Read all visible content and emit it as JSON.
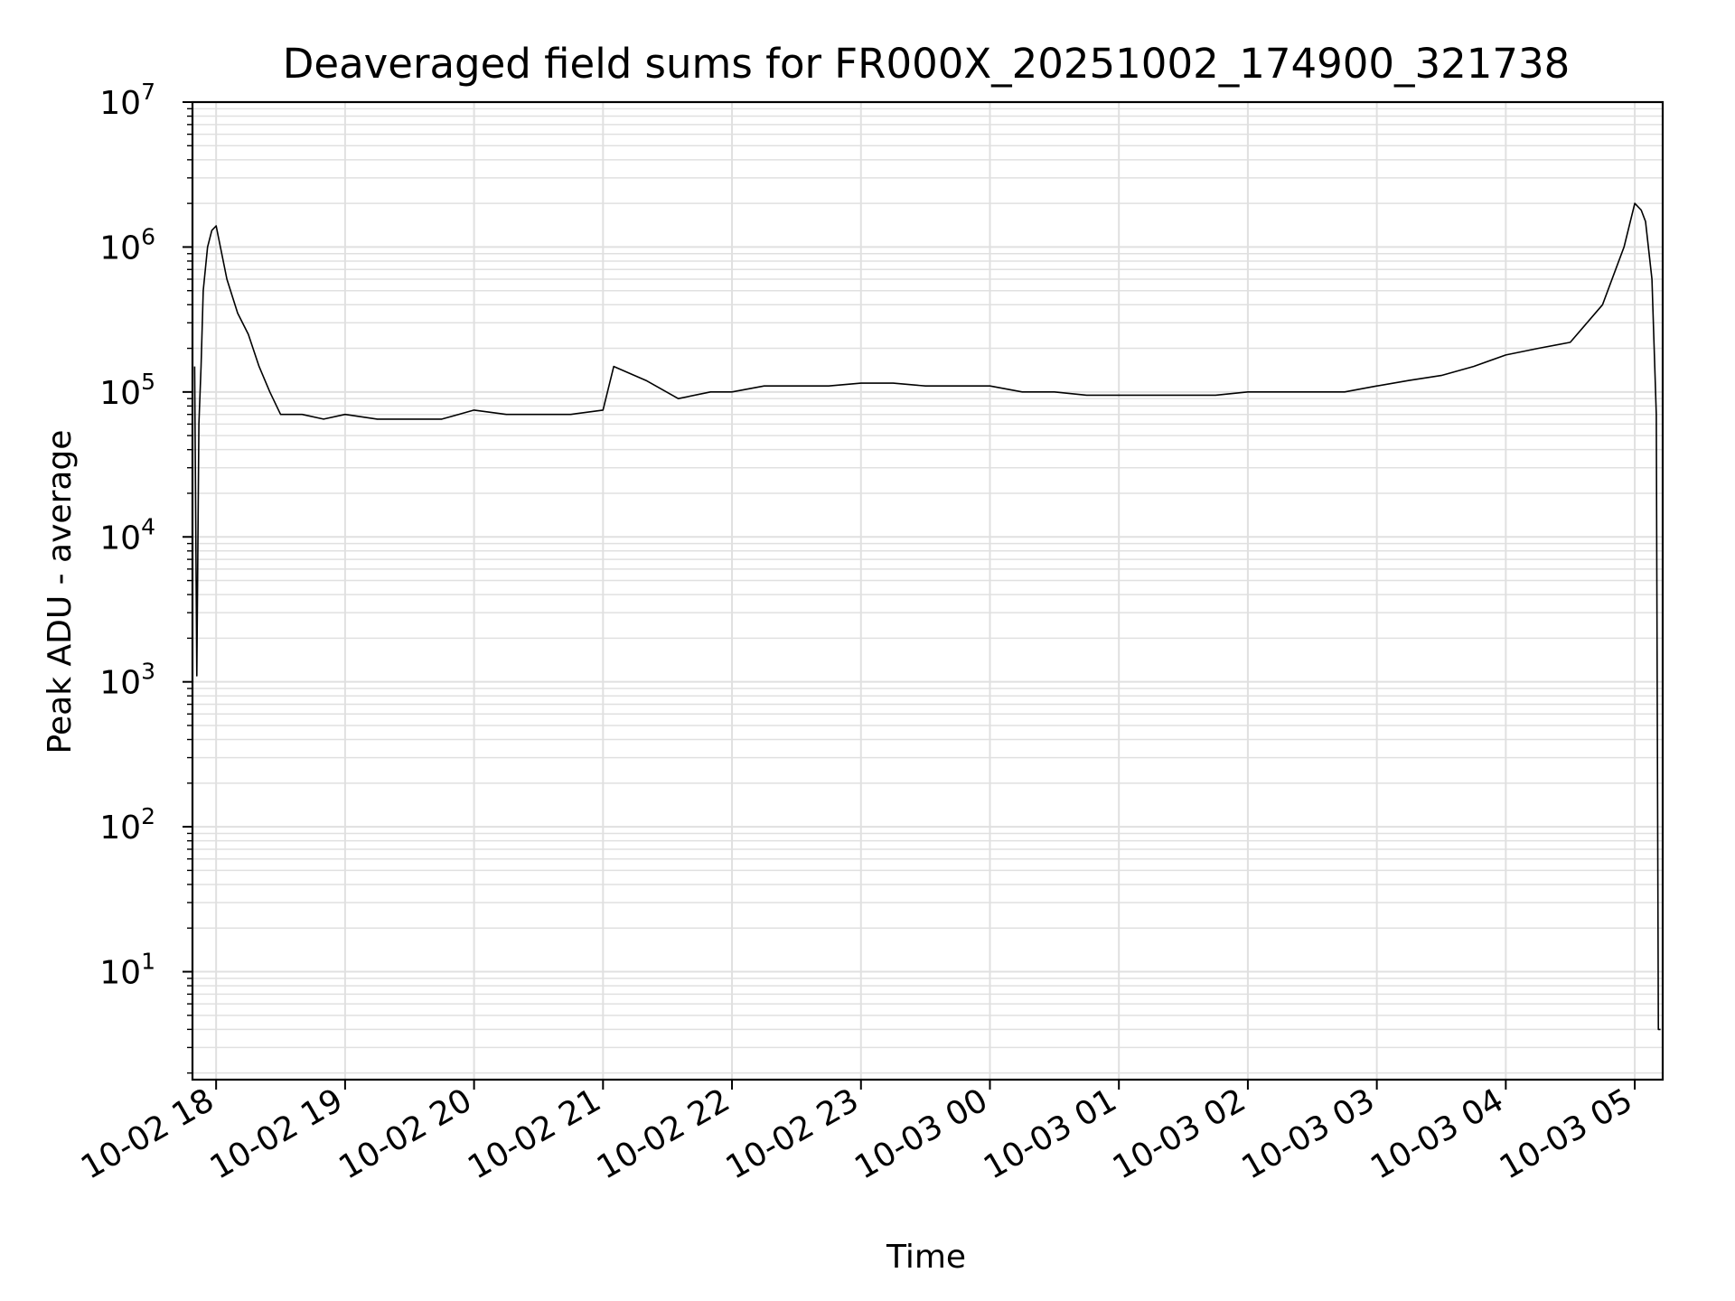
{
  "chart_data": {
    "type": "line",
    "title": "Deaveraged field sums for FR000X_20251002_174900_321738",
    "xlabel": "Time",
    "ylabel": "Peak ADU - average",
    "yscale": "log",
    "ylim": [
      1.8,
      10000000
    ],
    "xlim": [
      "2025-10-02 17:49",
      "2025-10-03 05:13"
    ],
    "grid": true,
    "line_color": "#000000",
    "grid_color": "#e0e0e0",
    "x_ticks": [
      {
        "label": "10-02 18",
        "value": "2025-10-02 18:00"
      },
      {
        "label": "10-02 19",
        "value": "2025-10-02 19:00"
      },
      {
        "label": "10-02 20",
        "value": "2025-10-02 20:00"
      },
      {
        "label": "10-02 21",
        "value": "2025-10-02 21:00"
      },
      {
        "label": "10-02 22",
        "value": "2025-10-02 22:00"
      },
      {
        "label": "10-02 23",
        "value": "2025-10-02 23:00"
      },
      {
        "label": "10-03 00",
        "value": "2025-10-03 00:00"
      },
      {
        "label": "10-03 01",
        "value": "2025-10-03 01:00"
      },
      {
        "label": "10-03 02",
        "value": "2025-10-03 02:00"
      },
      {
        "label": "10-03 03",
        "value": "2025-10-03 03:00"
      },
      {
        "label": "10-03 04",
        "value": "2025-10-03 04:00"
      },
      {
        "label": "10-03 05",
        "value": "2025-10-03 05:00"
      }
    ],
    "y_ticks": [
      {
        "base": "10",
        "exp": "1",
        "value": 10
      },
      {
        "base": "10",
        "exp": "2",
        "value": 100
      },
      {
        "base": "10",
        "exp": "3",
        "value": 1000
      },
      {
        "base": "10",
        "exp": "4",
        "value": 10000
      },
      {
        "base": "10",
        "exp": "5",
        "value": 100000
      },
      {
        "base": "10",
        "exp": "6",
        "value": 1000000
      },
      {
        "base": "10",
        "exp": "7",
        "value": 10000000
      }
    ],
    "series": [
      {
        "x": [
          "2025-10-02 17:50",
          "2025-10-02 17:51",
          "2025-10-02 17:52",
          "2025-10-02 17:53",
          "2025-10-02 17:54",
          "2025-10-02 17:56",
          "2025-10-02 17:58",
          "2025-10-02 18:00",
          "2025-10-02 18:02",
          "2025-10-02 18:05",
          "2025-10-02 18:10",
          "2025-10-02 18:15",
          "2025-10-02 18:20",
          "2025-10-02 18:25",
          "2025-10-02 18:30",
          "2025-10-02 18:40",
          "2025-10-02 18:50",
          "2025-10-02 19:00",
          "2025-10-02 19:15",
          "2025-10-02 19:30",
          "2025-10-02 19:45",
          "2025-10-02 20:00",
          "2025-10-02 20:15",
          "2025-10-02 20:30",
          "2025-10-02 20:45",
          "2025-10-02 21:00",
          "2025-10-02 21:05",
          "2025-10-02 21:20",
          "2025-10-02 21:35",
          "2025-10-02 21:50",
          "2025-10-02 22:00",
          "2025-10-02 22:15",
          "2025-10-02 22:30",
          "2025-10-02 22:45",
          "2025-10-02 23:00",
          "2025-10-02 23:15",
          "2025-10-02 23:30",
          "2025-10-02 23:45",
          "2025-10-03 00:00",
          "2025-10-03 00:15",
          "2025-10-03 00:30",
          "2025-10-03 00:45",
          "2025-10-03 01:00",
          "2025-10-03 01:15",
          "2025-10-03 01:30",
          "2025-10-03 01:45",
          "2025-10-03 02:00",
          "2025-10-03 02:15",
          "2025-10-03 02:30",
          "2025-10-03 02:45",
          "2025-10-03 03:00",
          "2025-10-03 03:15",
          "2025-10-03 03:30",
          "2025-10-03 03:45",
          "2025-10-03 04:00",
          "2025-10-03 04:15",
          "2025-10-03 04:30",
          "2025-10-03 04:45",
          "2025-10-03 04:55",
          "2025-10-03 05:00",
          "2025-10-03 05:03",
          "2025-10-03 05:05",
          "2025-10-03 05:08",
          "2025-10-03 05:10",
          "2025-10-03 05:11",
          "2025-10-03 05:12"
        ],
        "y": [
          150000,
          1100,
          60000,
          150000,
          500000,
          1000000,
          1300000,
          1400000,
          1000000,
          600000,
          350000,
          250000,
          150000,
          100000,
          70000,
          70000,
          65000,
          70000,
          65000,
          65000,
          65000,
          75000,
          70000,
          70000,
          70000,
          75000,
          150000,
          120000,
          90000,
          100000,
          100000,
          110000,
          110000,
          110000,
          115000,
          115000,
          110000,
          110000,
          110000,
          100000,
          100000,
          95000,
          95000,
          95000,
          95000,
          95000,
          100000,
          100000,
          100000,
          100000,
          110000,
          120000,
          130000,
          150000,
          180000,
          200000,
          220000,
          400000,
          1000000,
          2000000,
          1800000,
          1500000,
          600000,
          70000,
          4,
          4
        ]
      }
    ]
  }
}
